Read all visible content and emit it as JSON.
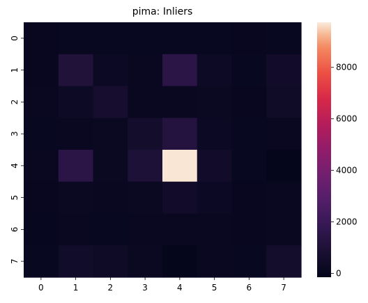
{
  "chart_data": {
    "type": "heatmap",
    "title": "pima: Inliers",
    "x_labels": [
      "0",
      "1",
      "2",
      "3",
      "4",
      "5",
      "6",
      "7"
    ],
    "y_labels": [
      "0",
      "1",
      "2",
      "3",
      "4",
      "5",
      "6",
      "7"
    ],
    "values": [
      [
        60,
        80,
        80,
        80,
        80,
        80,
        60,
        80
      ],
      [
        60,
        1100,
        250,
        150,
        1500,
        300,
        80,
        500
      ],
      [
        100,
        300,
        700,
        150,
        150,
        200,
        60,
        400
      ],
      [
        80,
        150,
        200,
        600,
        1200,
        250,
        80,
        150
      ],
      [
        100,
        1500,
        200,
        1000,
        9700,
        500,
        80,
        -80
      ],
      [
        60,
        200,
        150,
        200,
        500,
        250,
        60,
        150
      ],
      [
        40,
        100,
        80,
        100,
        100,
        100,
        60,
        100
      ],
      [
        80,
        450,
        350,
        200,
        -50,
        150,
        80,
        600
      ]
    ],
    "colorbar": {
      "vmin": -150,
      "vmax": 9750,
      "ticks": [
        0,
        2000,
        4000,
        6000,
        8000
      ],
      "colormap": "rocket"
    },
    "grid": false
  }
}
